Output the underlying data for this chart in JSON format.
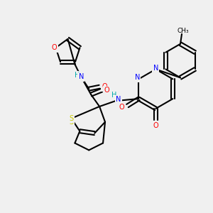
{
  "bg_color": "#f0f0f0",
  "atom_colors": {
    "C": "#000000",
    "N": "#0000ff",
    "O": "#ff0000",
    "S": "#cccc00",
    "H": "#00aaaa"
  },
  "bond_color": "#000000",
  "figsize": [
    3.0,
    3.0
  ],
  "dpi": 100
}
